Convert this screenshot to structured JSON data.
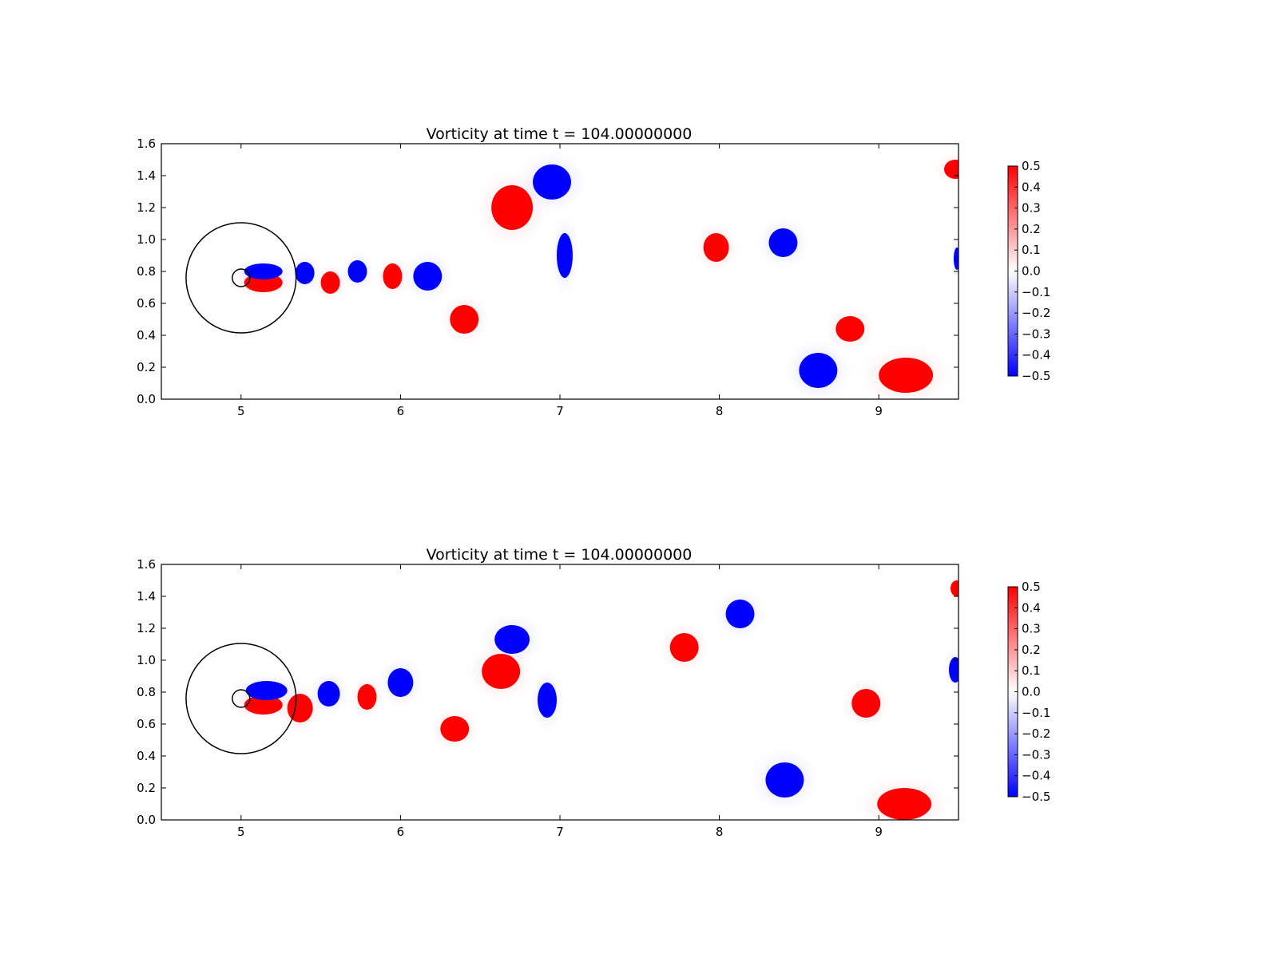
{
  "chart_data": [
    {
      "type": "heatmap",
      "title": "Vorticity at time t =   104.00000000",
      "xlabel": "",
      "ylabel": "",
      "xlim": [
        4.5,
        9.5
      ],
      "ylim": [
        0.0,
        1.6
      ],
      "xticks": [
        "5",
        "6",
        "7",
        "8",
        "9"
      ],
      "yticks": [
        "0.0",
        "0.2",
        "0.4",
        "0.6",
        "0.8",
        "1.0",
        "1.2",
        "1.4",
        "1.6"
      ],
      "grid": false,
      "colorbar": {
        "colormap": "bwr",
        "range": [
          -0.5,
          0.5
        ],
        "ticks": [
          "0.5",
          "0.4",
          "0.3",
          "0.2",
          "0.1",
          "0.0",
          "−0.1",
          "−0.2",
          "−0.3",
          "−0.4",
          "−0.5"
        ],
        "colors": {
          "negative": "#0000ff",
          "zero": "#ffffff",
          "positive": "#ff0000"
        }
      },
      "circles": [
        {
          "cx": 5.0,
          "cy": 0.76,
          "r": 0.345
        },
        {
          "cx": 5.0,
          "cy": 0.76,
          "r": 0.055
        }
      ],
      "vortices": [
        {
          "x": 6.4,
          "y": 0.5,
          "rx": 0.09,
          "ry": 0.09,
          "sign": 1
        },
        {
          "x": 6.7,
          "y": 1.2,
          "rx": 0.13,
          "ry": 0.14,
          "sign": 1
        },
        {
          "x": 6.95,
          "y": 1.36,
          "rx": 0.12,
          "ry": 0.11,
          "sign": -1
        },
        {
          "x": 7.03,
          "y": 0.9,
          "rx": 0.05,
          "ry": 0.14,
          "sign": -1
        },
        {
          "x": 5.4,
          "y": 0.79,
          "rx": 0.06,
          "ry": 0.07,
          "sign": -1
        },
        {
          "x": 5.56,
          "y": 0.73,
          "rx": 0.06,
          "ry": 0.07,
          "sign": 1
        },
        {
          "x": 5.73,
          "y": 0.8,
          "rx": 0.06,
          "ry": 0.07,
          "sign": -1
        },
        {
          "x": 5.95,
          "y": 0.77,
          "rx": 0.06,
          "ry": 0.08,
          "sign": 1
        },
        {
          "x": 6.17,
          "y": 0.77,
          "rx": 0.09,
          "ry": 0.09,
          "sign": -1
        },
        {
          "x": 7.98,
          "y": 0.95,
          "rx": 0.08,
          "ry": 0.09,
          "sign": 1
        },
        {
          "x": 8.4,
          "y": 0.98,
          "rx": 0.09,
          "ry": 0.09,
          "sign": -1
        },
        {
          "x": 8.82,
          "y": 0.44,
          "rx": 0.09,
          "ry": 0.08,
          "sign": 1
        },
        {
          "x": 8.62,
          "y": 0.18,
          "rx": 0.12,
          "ry": 0.11,
          "sign": -1
        },
        {
          "x": 9.17,
          "y": 0.15,
          "rx": 0.17,
          "ry": 0.11,
          "sign": 1
        },
        {
          "x": 9.48,
          "y": 1.44,
          "rx": 0.07,
          "ry": 0.06,
          "sign": 1
        },
        {
          "x": 9.49,
          "y": 0.88,
          "rx": 0.02,
          "ry": 0.07,
          "sign": -1
        },
        {
          "x": 5.14,
          "y": 0.73,
          "rx": 0.12,
          "ry": 0.06,
          "sign": 1
        },
        {
          "x": 5.14,
          "y": 0.8,
          "rx": 0.12,
          "ry": 0.05,
          "sign": -1
        }
      ]
    },
    {
      "type": "heatmap",
      "title": "Vorticity at time t =   104.00000000",
      "xlabel": "",
      "ylabel": "",
      "xlim": [
        4.5,
        9.5
      ],
      "ylim": [
        0.0,
        1.6
      ],
      "xticks": [
        "5",
        "6",
        "7",
        "8",
        "9"
      ],
      "yticks": [
        "0.0",
        "0.2",
        "0.4",
        "0.6",
        "0.8",
        "1.0",
        "1.2",
        "1.4",
        "1.6"
      ],
      "grid": false,
      "colorbar": {
        "colormap": "bwr",
        "range": [
          -0.5,
          0.5
        ],
        "ticks": [
          "0.5",
          "0.4",
          "0.3",
          "0.2",
          "0.1",
          "0.0",
          "−0.1",
          "−0.2",
          "−0.3",
          "−0.4",
          "−0.5"
        ],
        "colors": {
          "negative": "#0000ff",
          "zero": "#ffffff",
          "positive": "#ff0000"
        }
      },
      "circles": [
        {
          "cx": 5.0,
          "cy": 0.76,
          "r": 0.345
        },
        {
          "cx": 5.0,
          "cy": 0.76,
          "r": 0.055
        }
      ],
      "vortices": [
        {
          "x": 5.37,
          "y": 0.7,
          "rx": 0.08,
          "ry": 0.09,
          "sign": 1
        },
        {
          "x": 5.55,
          "y": 0.79,
          "rx": 0.07,
          "ry": 0.08,
          "sign": -1
        },
        {
          "x": 5.79,
          "y": 0.77,
          "rx": 0.06,
          "ry": 0.08,
          "sign": 1
        },
        {
          "x": 6.0,
          "y": 0.86,
          "rx": 0.08,
          "ry": 0.09,
          "sign": -1
        },
        {
          "x": 6.34,
          "y": 0.57,
          "rx": 0.09,
          "ry": 0.08,
          "sign": 1
        },
        {
          "x": 6.63,
          "y": 0.93,
          "rx": 0.12,
          "ry": 0.11,
          "sign": 1
        },
        {
          "x": 6.7,
          "y": 1.13,
          "rx": 0.11,
          "ry": 0.09,
          "sign": -1
        },
        {
          "x": 6.92,
          "y": 0.75,
          "rx": 0.06,
          "ry": 0.11,
          "sign": -1
        },
        {
          "x": 7.78,
          "y": 1.08,
          "rx": 0.09,
          "ry": 0.09,
          "sign": 1
        },
        {
          "x": 8.13,
          "y": 1.29,
          "rx": 0.09,
          "ry": 0.09,
          "sign": -1
        },
        {
          "x": 8.92,
          "y": 0.73,
          "rx": 0.09,
          "ry": 0.09,
          "sign": 1
        },
        {
          "x": 8.41,
          "y": 0.25,
          "rx": 0.12,
          "ry": 0.11,
          "sign": -1
        },
        {
          "x": 9.16,
          "y": 0.1,
          "rx": 0.17,
          "ry": 0.1,
          "sign": 1
        },
        {
          "x": 9.49,
          "y": 1.45,
          "rx": 0.04,
          "ry": 0.05,
          "sign": 1
        },
        {
          "x": 9.48,
          "y": 0.94,
          "rx": 0.04,
          "ry": 0.08,
          "sign": -1
        },
        {
          "x": 5.14,
          "y": 0.72,
          "rx": 0.12,
          "ry": 0.06,
          "sign": 1
        },
        {
          "x": 5.16,
          "y": 0.81,
          "rx": 0.13,
          "ry": 0.06,
          "sign": -1
        }
      ]
    }
  ]
}
